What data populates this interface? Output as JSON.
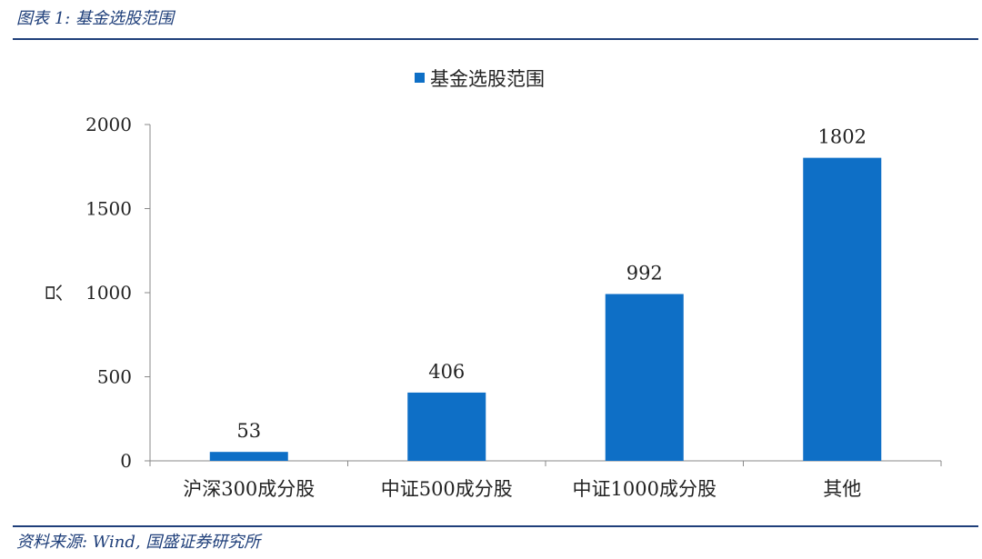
{
  "caption": "图表 1:  基金选股范围",
  "source": "资料来源: Wind, 国盛证券研究所",
  "chart_data": {
    "type": "bar",
    "legend": [
      "基金选股范围"
    ],
    "legend_position": "top",
    "categories": [
      "沪深300成分股",
      "中证500成分股",
      "中证1000成分股",
      "其他"
    ],
    "series": [
      {
        "name": "基金选股范围",
        "values": [
          53,
          406,
          992,
          1802
        ],
        "color": "#0e6fc6"
      }
    ],
    "data_labels": [
      "53",
      "406",
      "992",
      "1802"
    ],
    "ylabel": "只",
    "ylim": [
      0,
      2000
    ],
    "yticks": [
      0,
      500,
      1000,
      1500,
      2000
    ],
    "grid": false
  }
}
